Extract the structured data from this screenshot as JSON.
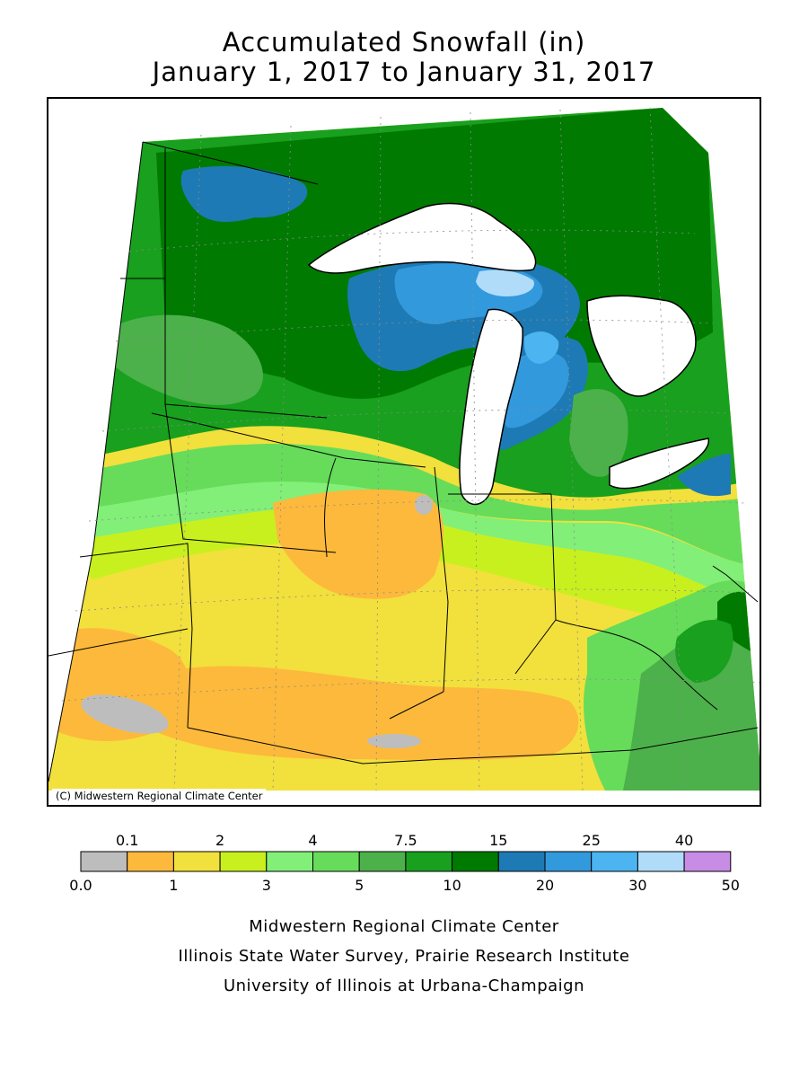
{
  "title": {
    "line1": "Accumulated Snowfall (in)",
    "line2": "January 1, 2017 to January 31, 2017"
  },
  "map": {
    "credit": "(C) Midwestern Regional Climate Center"
  },
  "legend": {
    "upper_labels": [
      "0.1",
      "2",
      "4",
      "7.5",
      "15",
      "25",
      "40"
    ],
    "lower_labels": [
      "0.0",
      "1",
      "3",
      "5",
      "10",
      "20",
      "30",
      "50"
    ],
    "colors": [
      "#bdbdbd",
      "#fdb93c",
      "#f2e03c",
      "#c8f01e",
      "#82ef78",
      "#66dc5a",
      "#4cb14a",
      "#18a01e",
      "#007a00",
      "#1e7ab4",
      "#3399dd",
      "#4cb4f0",
      "#b0dcfa",
      "#c88ce6"
    ]
  },
  "footer": {
    "line1": "Midwestern Regional Climate Center",
    "line2": "Illinois State Water Survey, Prairie Research Institute",
    "line3": "University of Illinois at Urbana-Champaign"
  }
}
